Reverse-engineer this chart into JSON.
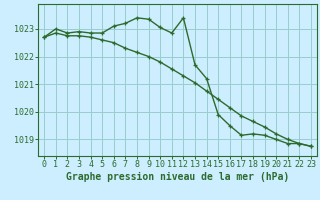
{
  "title": "Graphe pression niveau de la mer (hPa)",
  "bg_color": "#cceeff",
  "grid_color": "#99cccc",
  "line_color": "#2d6b2d",
  "ylim": [
    1018.4,
    1023.9
  ],
  "yticks": [
    1019,
    1020,
    1021,
    1022,
    1023
  ],
  "xlim": [
    -0.5,
    23.5
  ],
  "xticks": [
    0,
    1,
    2,
    3,
    4,
    5,
    6,
    7,
    8,
    9,
    10,
    11,
    12,
    13,
    14,
    15,
    16,
    17,
    18,
    19,
    20,
    21,
    22,
    23
  ],
  "series1_x": [
    0,
    1,
    2,
    3,
    4,
    5,
    6,
    7,
    8,
    9,
    10,
    11,
    12,
    13,
    14,
    15,
    16,
    17,
    18,
    19,
    20,
    21,
    22,
    23
  ],
  "series1_y": [
    1022.7,
    1023.0,
    1022.85,
    1022.9,
    1022.85,
    1022.85,
    1023.1,
    1023.2,
    1023.4,
    1023.35,
    1023.05,
    1022.85,
    1023.4,
    1021.7,
    1021.2,
    1019.9,
    1019.5,
    1019.15,
    1019.2,
    1019.15,
    1019.0,
    1018.85,
    1018.85,
    1018.75
  ],
  "series2_x": [
    0,
    1,
    2,
    3,
    4,
    5,
    6,
    7,
    8,
    9,
    10,
    11,
    12,
    13,
    14,
    15,
    16,
    17,
    18,
    19,
    20,
    21,
    22,
    23
  ],
  "series2_y": [
    1022.7,
    1022.85,
    1022.75,
    1022.75,
    1022.7,
    1022.6,
    1022.5,
    1022.3,
    1022.15,
    1022.0,
    1021.8,
    1021.55,
    1021.3,
    1021.05,
    1020.75,
    1020.45,
    1020.15,
    1019.85,
    1019.65,
    1019.45,
    1019.2,
    1019.0,
    1018.85,
    1018.75
  ],
  "tick_fontsize": 6,
  "xlabel_fontsize": 7,
  "lw": 1.0,
  "marker_size": 3.5
}
